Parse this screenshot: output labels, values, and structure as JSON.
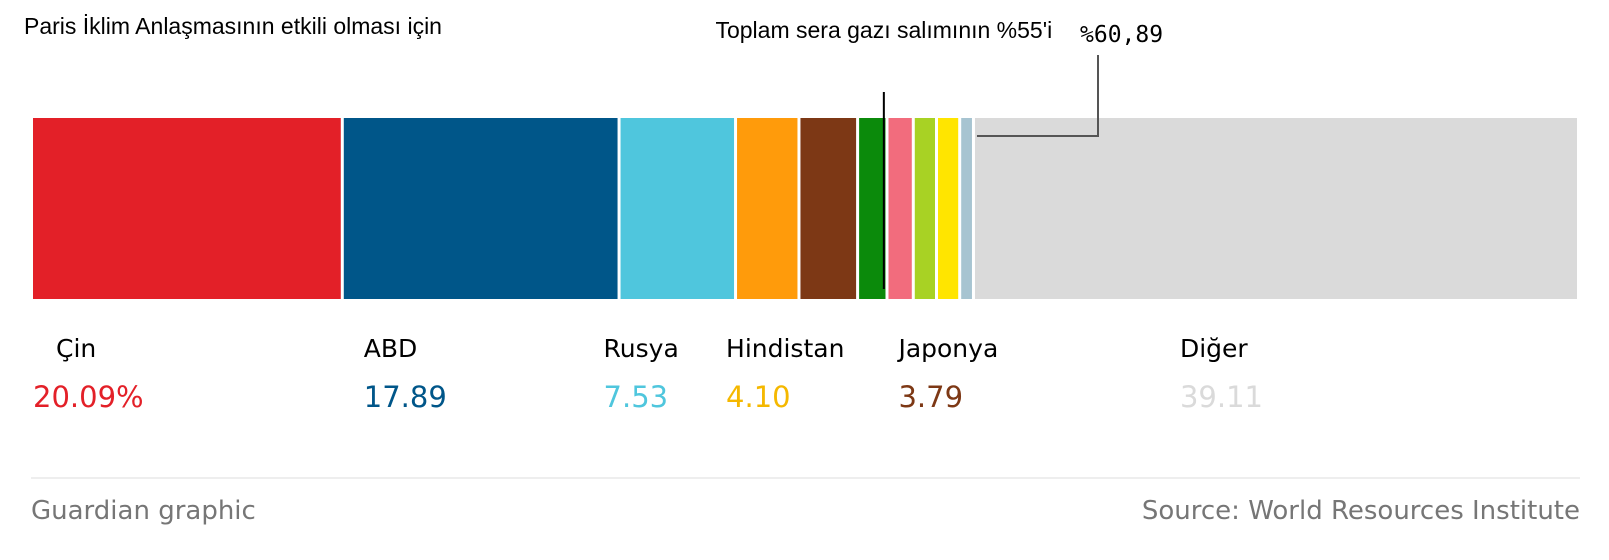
{
  "chart_data": {
    "type": "stacked_bar",
    "title": "Paris İklim Anlaşmasının etkili olması için",
    "categories": [
      "Çin",
      "ABD",
      "Rusya",
      "Hindistan",
      "Japonya",
      null,
      null,
      null,
      null,
      null,
      "Diğer"
    ],
    "values": [
      20.09,
      17.89,
      7.53,
      4.1,
      3.79,
      1.9,
      1.7,
      1.5,
      1.5,
      0.89,
      39.11
    ],
    "value_labels": [
      "20.09%",
      "17.89",
      "7.53",
      "4.10",
      "3.79",
      null,
      null,
      null,
      null,
      null,
      "39.11"
    ],
    "colors": [
      "#e32028",
      "#005689",
      "#4fc6dd",
      "#ff9b0b",
      "#7d3815",
      "#0b8a0b",
      "#f26c7d",
      "#a8d224",
      "#ffe500",
      "#a7c4d1",
      "#dadada"
    ],
    "label_colors": [
      "#e32028",
      "#005689",
      "#4fc6dd",
      "#f5b800",
      "#7d3815",
      null,
      null,
      null,
      null,
      null,
      "#dadada"
    ],
    "xlim": [
      0,
      100
    ],
    "annotations": [
      {
        "text": "Toplam sera gazı salımının %55'i",
        "value": 55
      },
      {
        "text": "%60,89",
        "value": 60.89
      }
    ],
    "credit": "Guardian graphic",
    "source": "Source: World Resources Institute"
  }
}
